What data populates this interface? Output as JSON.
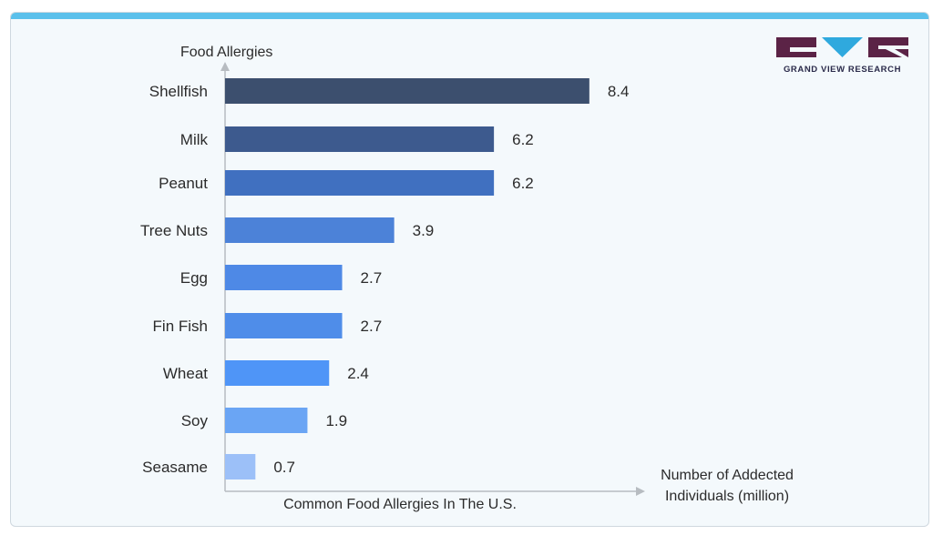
{
  "chart_data": {
    "type": "bar",
    "orientation": "horizontal",
    "categories": [
      "Shellfish",
      "Milk",
      "Peanut",
      "Tree Nuts",
      "Egg",
      "Fin Fish",
      "Wheat",
      "Soy",
      "Seasame"
    ],
    "values": [
      8.4,
      6.2,
      6.2,
      3.9,
      2.7,
      2.7,
      2.4,
      1.9,
      0.7
    ],
    "value_labels": [
      "8.4",
      "6.2",
      "6.2",
      "3.9",
      "2.7",
      "2.7",
      "2.4",
      "1.9",
      "0.7"
    ],
    "bar_colors": [
      "#3c4f6e",
      "#3d5a8e",
      "#4070c0",
      "#4c82d8",
      "#4e89e6",
      "#4f8de9",
      "#4f95f7",
      "#6aa5f4",
      "#9cc0f8"
    ],
    "title": "Common Food Allergies In The U.S.",
    "ylabel": "Food Allergies",
    "xlabel": [
      "Number of Addected",
      "Individuals (million)"
    ],
    "xlim": [
      0,
      9.5
    ],
    "grid": false,
    "legend": "none"
  },
  "brand": {
    "name": "GRAND VIEW RESEARCH",
    "logo_icon": "gvr-logo-icon",
    "colors": {
      "dark": "#5b2346",
      "light": "#2fa9de"
    }
  },
  "frame": {
    "accent": "#5bc0eb",
    "background": "#f4f9fc",
    "axis_color": "#b7bcc1"
  }
}
